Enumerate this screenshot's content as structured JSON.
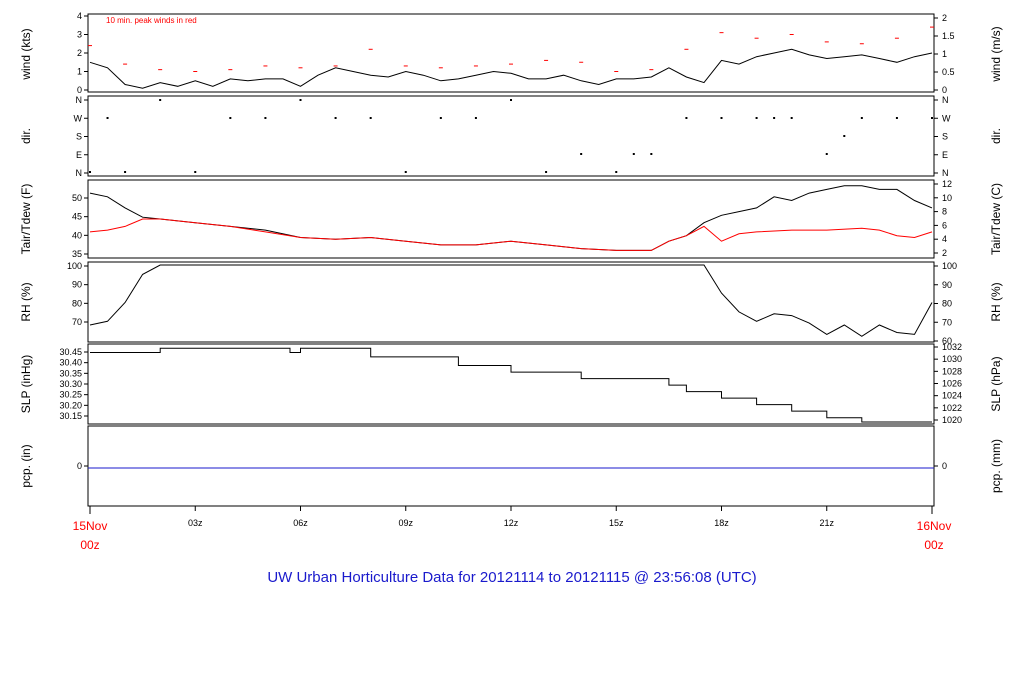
{
  "title": "UW Urban Horticulture Data for 20121114  to  20121115 @ 23:56:08  (UTC)",
  "colors": {
    "red": "#ff0000",
    "blue": "#1a1acc",
    "black": "#000000"
  },
  "time_axis": {
    "ticks": [
      {
        "h": 3,
        "label": "03z"
      },
      {
        "h": 6,
        "label": "06z"
      },
      {
        "h": 9,
        "label": "09z"
      },
      {
        "h": 12,
        "label": "12z"
      },
      {
        "h": 15,
        "label": "15z"
      },
      {
        "h": 18,
        "label": "18z"
      },
      {
        "h": 21,
        "label": "21z"
      }
    ],
    "start": {
      "date": "15Nov",
      "time": "00z"
    },
    "end": {
      "date": "16Nov",
      "time": "00z"
    }
  },
  "panels": {
    "wind": {
      "left_label": "wind (kts)",
      "right_label": "wind (m/s)",
      "note": "10 min. peak winds in red",
      "left_ticks": [
        "0",
        "1",
        "2",
        "3",
        "4"
      ],
      "right_ticks": [
        "0",
        "0.5",
        "1",
        "1.5",
        "2"
      ]
    },
    "dir": {
      "left_label": "dir.",
      "right_label": "dir.",
      "ticks": [
        "N",
        "E",
        "S",
        "W",
        "N"
      ]
    },
    "temp": {
      "left_label": "Tair/Tdew (F)",
      "right_label": "Tair/Tdew (C)",
      "left_ticks": [
        "35",
        "40",
        "45",
        "50"
      ],
      "right_ticks": [
        "2",
        "4",
        "6",
        "8",
        "10",
        "12"
      ]
    },
    "rh": {
      "left_label": "RH (%)",
      "right_label": "RH (%)",
      "left_ticks": [
        "70",
        "80",
        "90",
        "100"
      ],
      "right_ticks": [
        "60",
        "70",
        "80",
        "90",
        "100"
      ]
    },
    "slp": {
      "left_label": "SLP (inHg)",
      "right_label": "SLP (hPa)",
      "left_ticks": [
        "30.15",
        "30.20",
        "30.25",
        "30.30",
        "30.35",
        "30.40",
        "30.45"
      ],
      "right_ticks": [
        "1020",
        "1022",
        "1024",
        "1026",
        "1028",
        "1030",
        "1032"
      ]
    },
    "pcp": {
      "left_label": "pcp. (in)",
      "right_label": "pcp. (mm)",
      "left_ticks": [
        "0"
      ],
      "right_ticks": [
        "0"
      ]
    }
  },
  "chart_data": [
    {
      "type": "line",
      "title": "",
      "ylabel": "wind (kts)",
      "x_unit": "hours UTC",
      "ylim": [
        0,
        4
      ],
      "series": [
        {
          "x": [
            0,
            0.5,
            1,
            1.5,
            2,
            2.5,
            3,
            3.5,
            4,
            4.5,
            5,
            5.5,
            6,
            6.5,
            7,
            7.5,
            8,
            8.5,
            9,
            9.5,
            10,
            10.5,
            11,
            11.5,
            12,
            12.5,
            13,
            13.5,
            14,
            14.5,
            15,
            15.5,
            16,
            16.5,
            17,
            17.5,
            18,
            18.5,
            19,
            19.5,
            20,
            20.5,
            21,
            21.5,
            22,
            22.5,
            23,
            23.5,
            24
          ],
          "values": [
            1.5,
            1.2,
            0.3,
            0.1,
            0.4,
            0.2,
            0.5,
            0.2,
            0.6,
            0.5,
            0.6,
            0.6,
            0.2,
            0.8,
            1.2,
            1.0,
            0.8,
            0.7,
            1.0,
            0.8,
            0.5,
            0.6,
            0.8,
            1.0,
            0.9,
            0.6,
            0.6,
            0.8,
            0.5,
            0.3,
            0.6,
            0.6,
            0.7,
            1.2,
            0.7,
            0.4,
            1.6,
            1.4,
            1.8,
            2.0,
            2.2,
            1.9,
            1.7,
            1.8,
            1.9,
            1.7,
            1.5,
            1.8,
            2.0
          ]
        },
        {
          "x": [
            0,
            1,
            2,
            3,
            4,
            5,
            6,
            7,
            8,
            9,
            10,
            11,
            12,
            13,
            14,
            15,
            16,
            17,
            18,
            19,
            20,
            21,
            22,
            23,
            24
          ],
          "values": [
            2.4,
            1.4,
            1.1,
            1.0,
            1.1,
            1.3,
            1.2,
            1.3,
            2.2,
            1.3,
            1.2,
            1.3,
            1.4,
            1.6,
            1.5,
            1.0,
            1.1,
            2.2,
            3.1,
            2.8,
            3.0,
            2.6,
            2.5,
            2.8,
            3.4
          ]
        }
      ]
    },
    {
      "type": "scatter",
      "title": "",
      "ylabel": "dir.",
      "x_unit": "hours UTC",
      "yticks": [
        "N",
        "E",
        "S",
        "W",
        "N"
      ],
      "series": [
        {
          "x": [
            0,
            0.5,
            1,
            2,
            3,
            4,
            5,
            6,
            7,
            8,
            9,
            10,
            11,
            12,
            13,
            14,
            15,
            15.5,
            16,
            17,
            18,
            19,
            19.5,
            20,
            21,
            21.5,
            22,
            23,
            24
          ],
          "values": [
            "N",
            "W",
            "N",
            "N",
            "N",
            "W",
            "W",
            "N",
            "W",
            "W",
            "N",
            "W",
            "W",
            "N",
            "N",
            "E",
            "N",
            "E",
            "E",
            "W",
            "W",
            "W",
            "W",
            "W",
            "E",
            "S",
            "W",
            "W",
            "W"
          ]
        }
      ]
    },
    {
      "type": "line",
      "title": "",
      "ylabel": "Tair/Tdew (F)",
      "x_unit": "hours UTC",
      "ylim": [
        34,
        54
      ],
      "series": [
        {
          "x": [
            0,
            0.5,
            1,
            1.5,
            2,
            3,
            4,
            5,
            6,
            7,
            8,
            9,
            10,
            11,
            12,
            13,
            14,
            15,
            16,
            16.5,
            17,
            17.5,
            18,
            18.5,
            19,
            19.5,
            20,
            20.5,
            21,
            21.5,
            22,
            22.5,
            23,
            23.5,
            24
          ],
          "values": [
            51,
            50,
            47,
            44.5,
            44,
            43,
            42,
            41,
            39,
            38.5,
            39,
            38,
            37,
            37,
            38,
            37,
            36,
            35.5,
            35.5,
            38,
            39.5,
            43,
            45,
            46,
            47,
            50,
            49,
            51,
            52,
            53,
            53,
            52,
            52,
            49,
            47
          ]
        },
        {
          "x": [
            0,
            0.5,
            1,
            1.5,
            2,
            3,
            4,
            5,
            6,
            7,
            8,
            9,
            10,
            11,
            12,
            13,
            14,
            15,
            16,
            16.5,
            17,
            17.5,
            18,
            18.5,
            19,
            20,
            21,
            22,
            22.5,
            23,
            23.5,
            24
          ],
          "values": [
            40.5,
            41,
            42,
            44,
            44,
            43,
            42,
            40.5,
            39,
            38.5,
            39,
            38,
            37,
            37,
            38,
            37,
            36,
            35.5,
            35.5,
            38,
            39.5,
            42,
            38,
            40,
            40.5,
            41,
            41,
            41.5,
            41,
            39.5,
            39,
            40.5
          ]
        }
      ]
    },
    {
      "type": "line",
      "title": "",
      "ylabel": "RH (%)",
      "x_unit": "hours UTC",
      "ylim": [
        60,
        100
      ],
      "series": [
        {
          "x": [
            0,
            0.5,
            1,
            1.5,
            2,
            17.5,
            18,
            18.5,
            19,
            19.5,
            20,
            20.5,
            21,
            21.5,
            22,
            22.5,
            23,
            23.5,
            24
          ],
          "values": [
            68,
            70,
            80,
            95,
            100,
            100,
            85,
            75,
            70,
            74,
            73,
            69,
            63,
            68,
            62,
            68,
            64,
            63,
            80
          ]
        }
      ]
    },
    {
      "type": "line",
      "title": "",
      "ylabel": "SLP (inHg)",
      "x_unit": "hours UTC",
      "ylim": [
        30.13,
        30.48
      ],
      "series": [
        {
          "x": [
            0,
            2,
            5.7,
            6,
            8,
            10.5,
            12,
            14,
            16.5,
            17,
            18,
            19,
            20,
            21,
            22,
            24
          ],
          "values": [
            30.45,
            30.47,
            30.45,
            30.47,
            30.43,
            30.39,
            30.36,
            30.33,
            30.3,
            30.27,
            30.24,
            30.21,
            30.18,
            30.15,
            30.13,
            30.13
          ]
        }
      ]
    },
    {
      "type": "line",
      "title": "",
      "ylabel": "pcp. (in)",
      "x_unit": "hours UTC",
      "series": [
        {
          "x": [
            0,
            24
          ],
          "values": [
            0,
            0
          ]
        }
      ]
    }
  ]
}
